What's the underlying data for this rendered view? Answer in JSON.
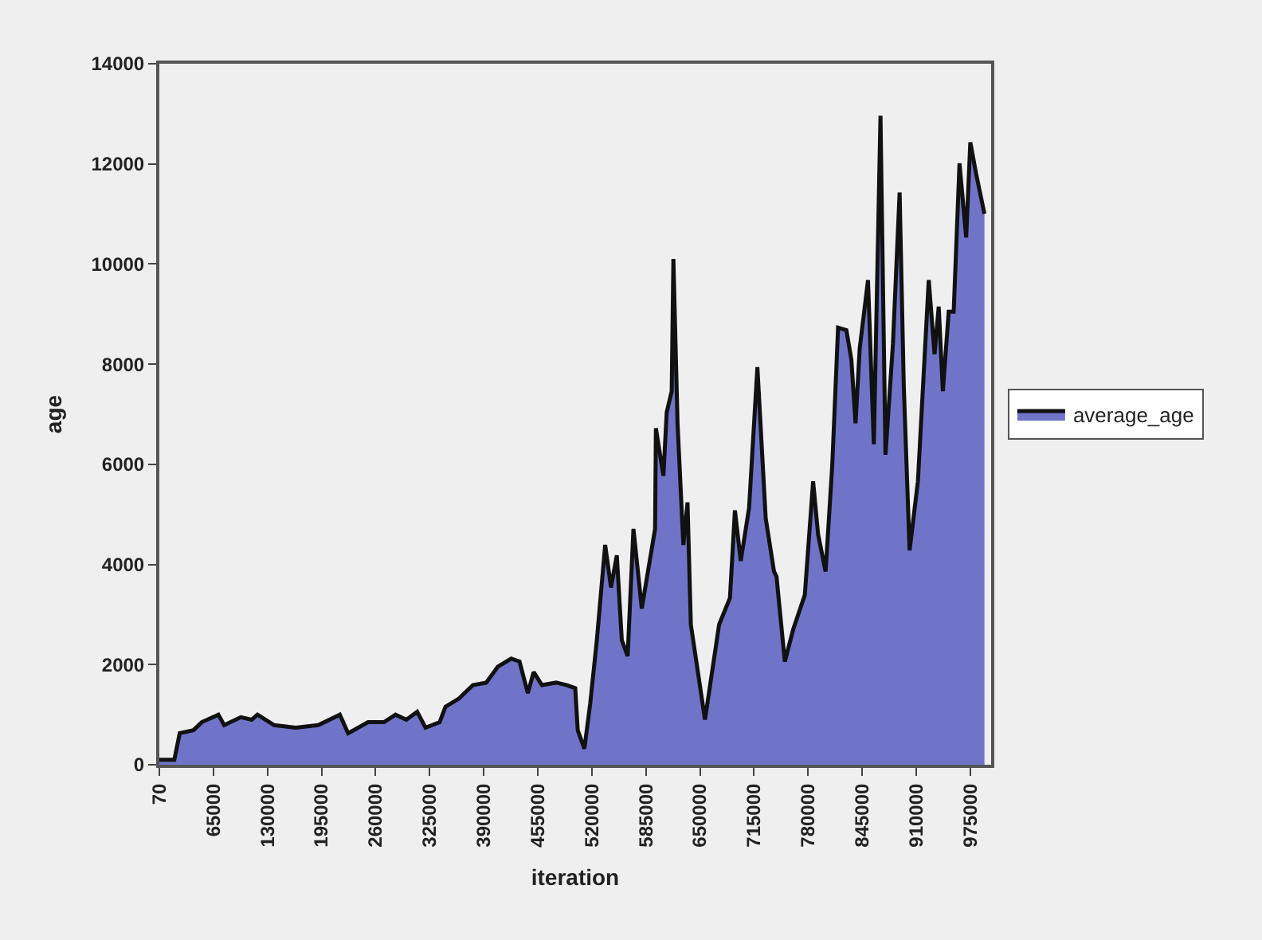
{
  "chart_data": {
    "type": "area",
    "xlabel": "iteration",
    "ylabel": "age",
    "x": [
      0,
      18000,
      24500,
      41000,
      51000,
      71000,
      78000,
      98000,
      111000,
      118000,
      138000,
      164000,
      191000,
      217000,
      227000,
      251000,
      270000,
      284000,
      297000,
      310000,
      320000,
      337000,
      344000,
      360000,
      377000,
      393000,
      407000,
      423000,
      433000,
      443000,
      450000,
      460000,
      477000,
      490000,
      500000,
      503000,
      511000,
      518000,
      526000,
      536000,
      543000,
      550000,
      556000,
      563000,
      570000,
      580000,
      596000,
      597000,
      606000,
      610000,
      616000,
      618000,
      623000,
      630000,
      635000,
      639000,
      656000,
      673000,
      686000,
      692000,
      699000,
      709000,
      719000,
      729000,
      739000,
      742000,
      752000,
      762000,
      776000,
      786000,
      792000,
      801000,
      809000,
      816000,
      826000,
      832000,
      837000,
      842000,
      852000,
      859000,
      867000,
      873000,
      882000,
      890000,
      895000,
      902000,
      912000,
      925000,
      932000,
      937000,
      942000,
      949000,
      955000,
      962000,
      970000,
      975000,
      982000,
      992000
    ],
    "series": [
      {
        "name": "average_age",
        "color": "#6f74c8",
        "values": [
          100,
          100,
          630,
          690,
          850,
          1000,
          790,
          950,
          900,
          1000,
          790,
          740,
          790,
          1000,
          630,
          850,
          850,
          1000,
          900,
          1060,
          740,
          850,
          1160,
          1320,
          1590,
          1640,
          1960,
          2120,
          2060,
          1430,
          1850,
          1590,
          1640,
          1590,
          1530,
          690,
          320,
          1220,
          2490,
          4390,
          3540,
          4180,
          2490,
          2170,
          4710,
          3120,
          4710,
          6720,
          5770,
          7040,
          7460,
          10100,
          6820,
          4390,
          5240,
          2800,
          900,
          2800,
          3330,
          5080,
          4070,
          5130,
          7940,
          4920,
          3860,
          3760,
          2060,
          2700,
          3390,
          5660,
          4600,
          3860,
          5980,
          8730,
          8680,
          8090,
          6820,
          8310,
          9680,
          6400,
          12960,
          6190,
          8410,
          11430,
          7560,
          4280,
          5660,
          9680,
          8200,
          9150,
          7460,
          9050,
          9050,
          12010,
          10530,
          12430,
          11800,
          11000
        ]
      }
    ],
    "xlim": [
      0,
      1000000
    ],
    "xticks": [
      70,
      65000,
      130000,
      195000,
      260000,
      325000,
      390000,
      455000,
      520000,
      585000,
      650000,
      715000,
      780000,
      845000,
      910000,
      975000
    ],
    "ylim": [
      0,
      14000
    ],
    "yticks": [
      0,
      2000,
      4000,
      6000,
      8000,
      10000,
      12000,
      14000
    ],
    "legend": "right",
    "grid": false,
    "marker": "none",
    "line_style": "solid"
  }
}
